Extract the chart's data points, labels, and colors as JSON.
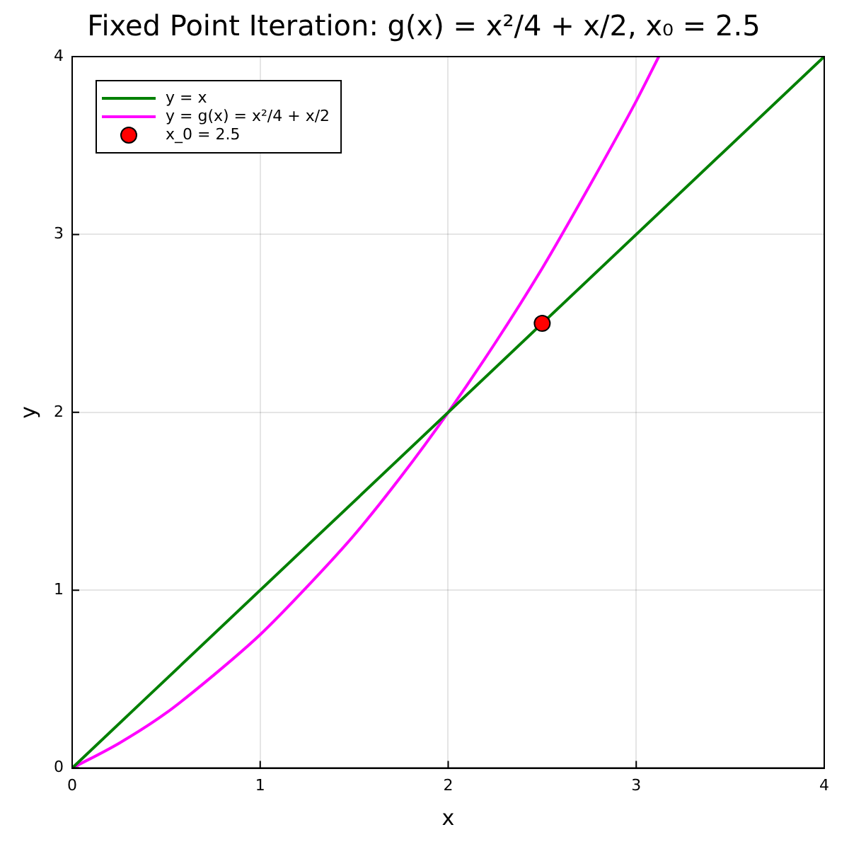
{
  "chart_data": {
    "type": "line",
    "title": "Fixed Point Iteration: g(x) = x²/4 + x/2, x₀ = 2.5",
    "xlabel": "x",
    "ylabel": "y",
    "xlim": [
      0,
      4
    ],
    "ylim": [
      0,
      4
    ],
    "xticks": [
      0,
      1,
      2,
      3,
      4
    ],
    "yticks": [
      0,
      1,
      2,
      3,
      4
    ],
    "grid": true,
    "legend": "top left",
    "series": [
      {
        "name": "y = x",
        "color": "#008000",
        "marker": "none",
        "x": [
          0,
          4
        ],
        "values": [
          0,
          4
        ]
      },
      {
        "name": "y = g(x) = x²/4 + x/2",
        "color": "#ff00ff",
        "marker": "none",
        "x": [
          0,
          0.25,
          0.5,
          0.75,
          1,
          1.25,
          1.5,
          1.75,
          2,
          2.25,
          2.5,
          2.75,
          3,
          3.12
        ],
        "values": [
          0,
          0.14,
          0.31,
          0.52,
          0.75,
          1.02,
          1.31,
          1.64,
          2,
          2.39,
          2.81,
          3.27,
          3.75,
          4
        ]
      },
      {
        "name": "x_0 = 2.5",
        "type": "scatter",
        "color": "#ff0000",
        "marker": "circle",
        "x": [
          2.5
        ],
        "values": [
          2.5
        ]
      }
    ]
  }
}
